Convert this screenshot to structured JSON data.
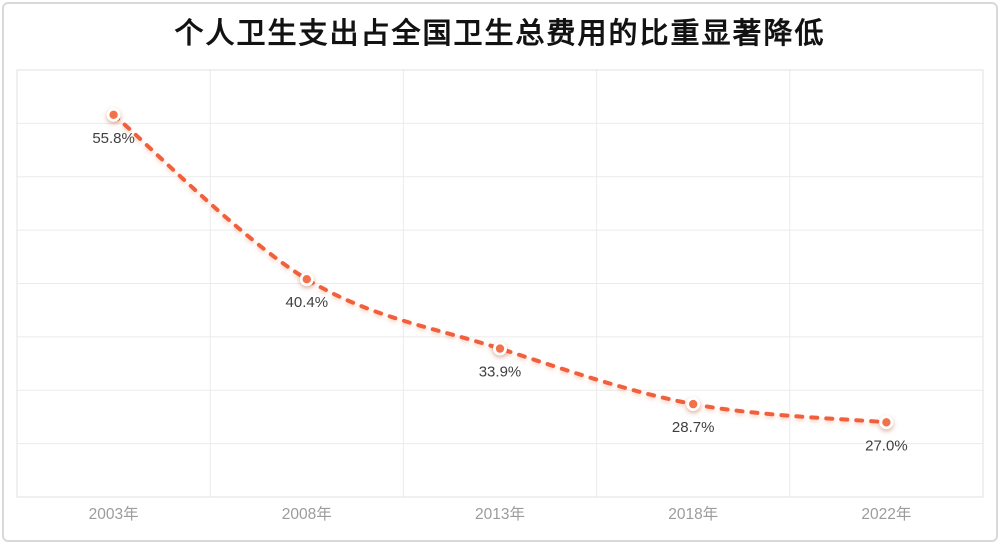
{
  "page": {
    "background": "#ffffff",
    "border_color": "#d9d9d9"
  },
  "chart_data": {
    "type": "line",
    "title": "个人卫生支出占全国卫生总费用的比重显著降低",
    "categories": [
      "2003年",
      "2008年",
      "2013年",
      "2018年",
      "2022年"
    ],
    "values": [
      55.8,
      40.4,
      33.9,
      28.7,
      27.0
    ],
    "data_labels": [
      "55.8%",
      "40.4%",
      "33.9%",
      "28.7%",
      "27.0%"
    ],
    "ylim": [
      20,
      60
    ],
    "y_grid_step": 5,
    "x_grid": true,
    "y_axis_labels_visible": false,
    "legend": "none",
    "line_style": "dashed-smooth",
    "marker": "circle",
    "colors": {
      "line": "#f0603c",
      "marker_fill": "#f3714a",
      "marker_ring": "#ffffff",
      "grid": "#ebebeb",
      "plot_border": "#e0e0e0",
      "data_label": "#404040",
      "axis_label": "#9c9c9c",
      "title": "#121212"
    }
  }
}
